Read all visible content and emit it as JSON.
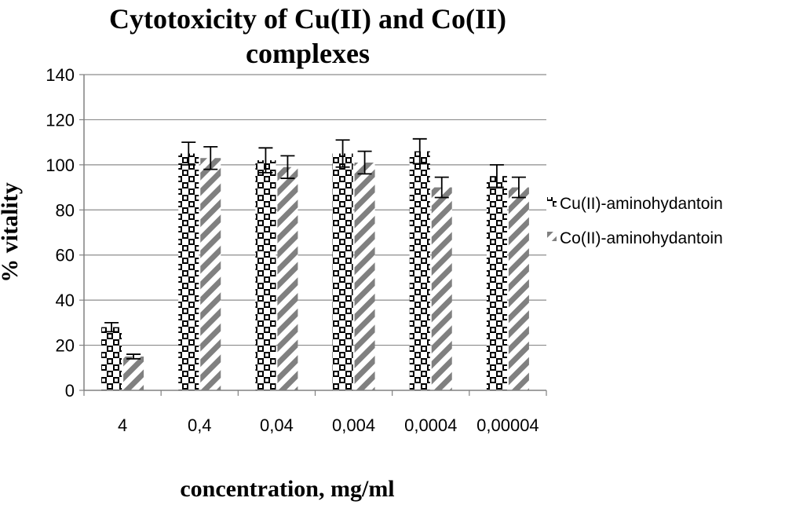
{
  "chart_data": {
    "type": "bar",
    "title": "Cytotoxicity of Cu(II) and Co(II) complexes",
    "title_lines": [
      "Cytotoxicity of Cu(II) and Co(II)",
      "complexes"
    ],
    "xlabel": "concentration, mg/ml",
    "ylabel": "% vitality",
    "categories": [
      "4",
      "0,4",
      "0,04",
      "0,004",
      "0,0004",
      "0,00004"
    ],
    "ylim": [
      0,
      140
    ],
    "yticks": [
      0,
      20,
      40,
      60,
      80,
      100,
      120,
      140
    ],
    "grid": true,
    "legend_position": "right",
    "series": [
      {
        "name": "Cu(II)-aminohydantoin",
        "pattern": "checker",
        "color": "#000000",
        "values": [
          28,
          105,
          102,
          105,
          106,
          95
        ],
        "errors": [
          2,
          5,
          5.5,
          6,
          5.5,
          5
        ]
      },
      {
        "name": "Co(II)-aminohydantoin",
        "pattern": "diagonal-stripes",
        "color": "#808080",
        "values": [
          15,
          103,
          99,
          101,
          90,
          90
        ],
        "errors": [
          1,
          5,
          5,
          5,
          4.5,
          4.5
        ]
      }
    ]
  }
}
